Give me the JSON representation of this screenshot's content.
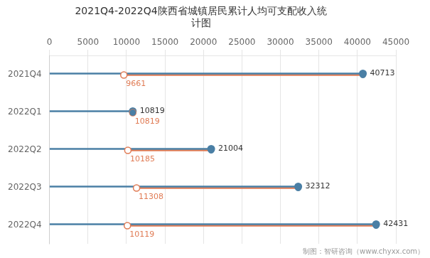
{
  "chart_data": {
    "type": "dumbbell",
    "orientation": "horizontal",
    "title": "2021Q4-2022Q4陕西省城镇居民累计人均可支配收入统\n计图",
    "categories": [
      "2021Q4",
      "2022Q1",
      "2022Q2",
      "2022Q3",
      "2022Q4"
    ],
    "series": [
      {
        "values": [
          40713,
          10819,
          21004,
          32312,
          42431
        ],
        "color": "#4a7fa5",
        "marker": "circle"
      },
      {
        "values": [
          9661,
          10819,
          10185,
          11308,
          10119
        ],
        "color": "#e07b54",
        "marker": "circle_open"
      }
    ],
    "xlim": [
      0,
      45000
    ],
    "xticks": [
      0,
      5000,
      10000,
      15000,
      20000,
      25000,
      30000,
      35000,
      40000,
      45000
    ],
    "grid": true,
    "data_labels": true,
    "annotations": [
      "制图：智研咨询（www.chyxx.com）"
    ]
  }
}
